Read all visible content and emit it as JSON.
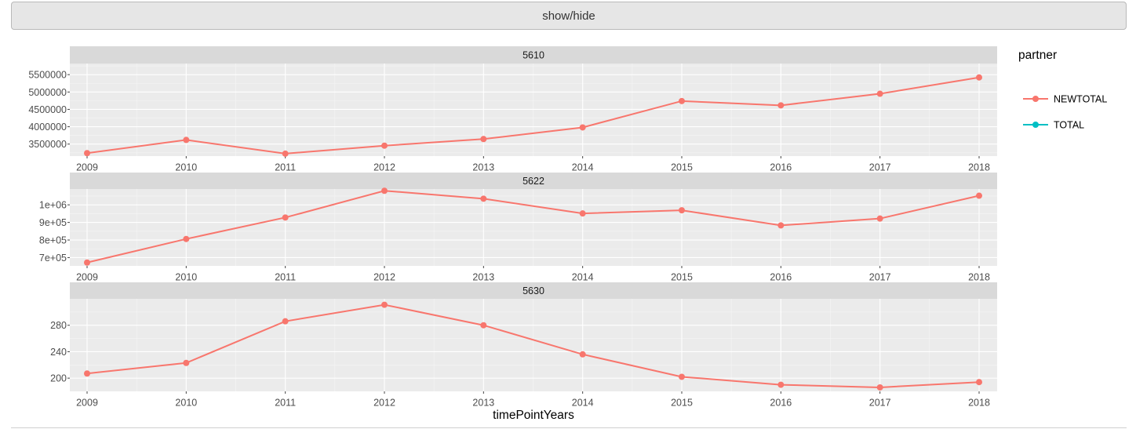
{
  "button": {
    "label": "show/hide"
  },
  "chart_data": {
    "type": "line",
    "x_title": "timePointYears",
    "legend": {
      "title": "partner",
      "placement": "right",
      "entries": [
        {
          "name": "NEWTOTAL",
          "color": "#F8766D"
        },
        {
          "name": "TOTAL",
          "color": "#00BFC4"
        }
      ]
    },
    "grid": true,
    "panels": [
      {
        "strip": "5610",
        "x": [
          2009,
          2010,
          2011,
          2012,
          2013,
          2014,
          2015,
          2016,
          2017,
          2018
        ],
        "x_ticks": [
          "2009",
          "2010",
          "2011",
          "2012",
          "2013",
          "2014",
          "2015",
          "2016",
          "2017",
          "2018"
        ],
        "y_ticks": [
          {
            "value": 3500000,
            "label": "3500000"
          },
          {
            "value": 4000000,
            "label": "4000000"
          },
          {
            "value": 4500000,
            "label": "4500000"
          },
          {
            "value": 5000000,
            "label": "5000000"
          },
          {
            "value": 5500000,
            "label": "5500000"
          }
        ],
        "ylim": [
          3155000,
          5820000
        ],
        "series": [
          {
            "name": "NEWTOTAL",
            "color": "#F8766D",
            "values": [
              3240000,
              3620000,
              3225000,
              3455000,
              3645000,
              3980000,
              4740000,
              4615000,
              4950000,
              5420000
            ]
          }
        ]
      },
      {
        "strip": "5622",
        "x": [
          2009,
          2010,
          2011,
          2012,
          2013,
          2014,
          2015,
          2016,
          2017,
          2018
        ],
        "x_ticks": [
          "2009",
          "2010",
          "2011",
          "2012",
          "2013",
          "2014",
          "2015",
          "2016",
          "2017",
          "2018"
        ],
        "y_ticks": [
          {
            "value": 700000,
            "label": "7e+05"
          },
          {
            "value": 800000,
            "label": "8e+05"
          },
          {
            "value": 900000,
            "label": "9e+05"
          },
          {
            "value": 1000000,
            "label": "1e+06"
          }
        ],
        "ylim": [
          653000,
          1090000
        ],
        "series": [
          {
            "name": "NEWTOTAL",
            "color": "#F8766D",
            "values": [
              672000,
              806000,
              928000,
              1080000,
              1035000,
              951000,
              969000,
              883000,
              922000,
              1052000
            ]
          }
        ]
      },
      {
        "strip": "5630",
        "x": [
          2009,
          2010,
          2011,
          2012,
          2013,
          2014,
          2015,
          2016,
          2017,
          2018
        ],
        "x_ticks": [
          "2009",
          "2010",
          "2011",
          "2012",
          "2013",
          "2014",
          "2015",
          "2016",
          "2017",
          "2018"
        ],
        "y_ticks": [
          {
            "value": 200,
            "label": "200"
          },
          {
            "value": 240,
            "label": "240"
          },
          {
            "value": 280,
            "label": "280"
          }
        ],
        "ylim": [
          180,
          320
        ],
        "series": [
          {
            "name": "NEWTOTAL",
            "color": "#F8766D",
            "values": [
              207,
              223,
              286,
              311,
              280,
              236,
              202,
              190,
              186,
              194
            ]
          }
        ]
      }
    ]
  }
}
